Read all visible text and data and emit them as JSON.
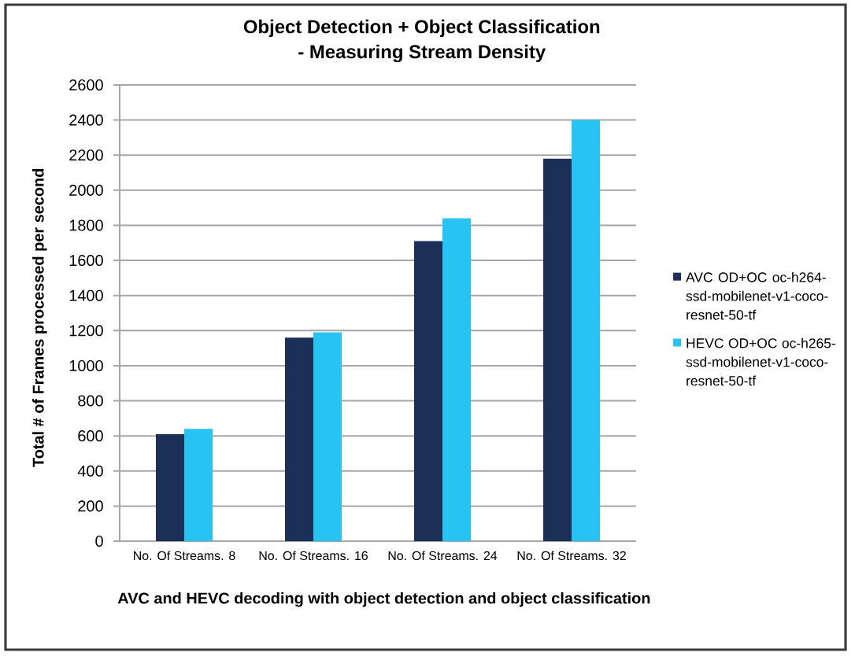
{
  "chart_data": {
    "type": "bar",
    "title": "Object Detection + Object Classification - Measuring Stream Density",
    "xlabel": "AVC and HEVC decoding with object detection and object classification",
    "ylabel": "Total # of Frames processed per second",
    "categories": [
      "No. Of Streams. 8",
      "No. Of Streams. 16",
      "No. Of Streams. 24",
      "No. Of Streams. 32"
    ],
    "series": [
      {
        "name": "AVC OD+OC oc-h264-ssd-mobilenet-v1-coco-resnet-50-tf",
        "color": "#1b2f57",
        "values": [
          610,
          1160,
          1710,
          2180
        ]
      },
      {
        "name": "HEVC OD+OC oc-h265-ssd-mobilenet-v1-coco-resnet-50-tf",
        "color": "#27c4f3",
        "values": [
          640,
          1190,
          1840,
          2400
        ]
      }
    ],
    "ylim": [
      0,
      2600
    ],
    "yticks": [
      0,
      200,
      400,
      600,
      800,
      1000,
      1200,
      1400,
      1600,
      1800,
      2000,
      2200,
      2400,
      2600
    ],
    "grid": "y",
    "legend": "right"
  }
}
